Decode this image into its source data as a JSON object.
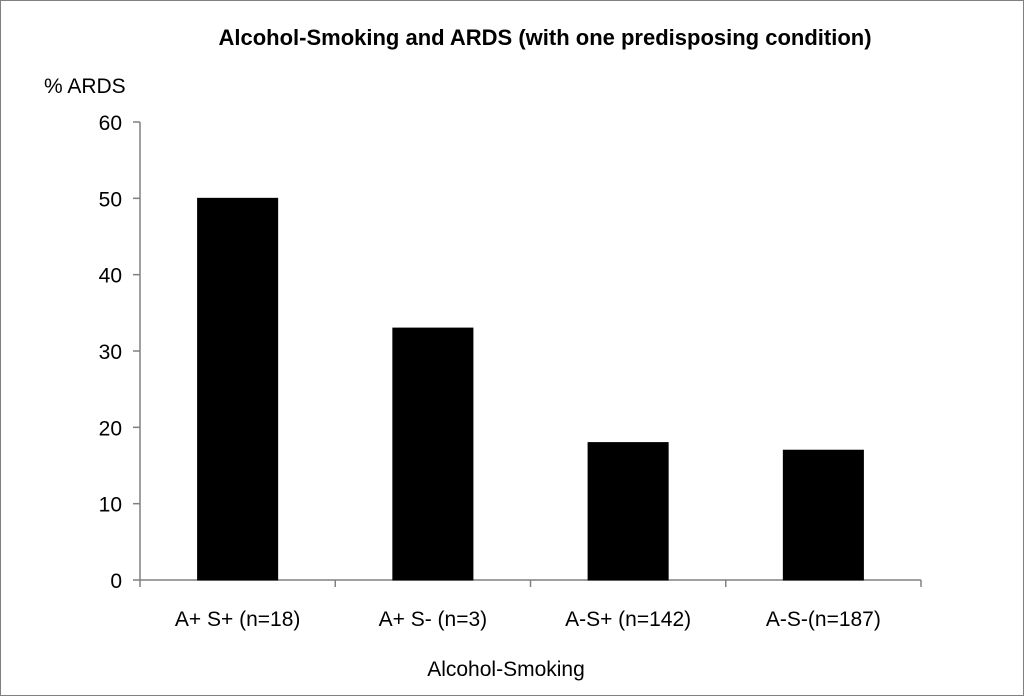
{
  "chart_data": {
    "type": "bar",
    "title": "Alcohol-Smoking and ARDS (with one predisposing condition)",
    "ylabel": "% ARDS",
    "xlabel": "Alcohol-Smoking",
    "categories": [
      "A+ S+ (n=18)",
      "A+ S- (n=3)",
      "A-S+ (n=142)",
      "A-S-(n=187)"
    ],
    "values": [
      50,
      33,
      18,
      17
    ],
    "ylim": [
      0,
      60
    ],
    "yticks": [
      "0",
      "10",
      "20",
      "30",
      "40",
      "50",
      "60"
    ],
    "bar_color": "#000000",
    "grid": false,
    "legend": "none"
  }
}
